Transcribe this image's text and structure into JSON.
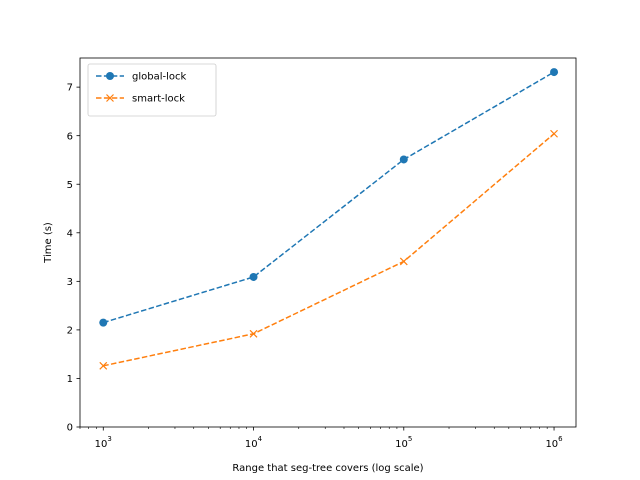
{
  "chart_data": {
    "type": "line",
    "title": "",
    "xlabel": "Range that seg-tree covers (log scale)",
    "ylabel": "Time (s)",
    "xscale": "log",
    "xlim": [
      700,
      1400000
    ],
    "ylim": [
      0,
      7.6
    ],
    "x": [
      1000,
      10000,
      100000,
      1000000
    ],
    "x_tick_labels": [
      {
        "base": "10",
        "exp": "3"
      },
      {
        "base": "10",
        "exp": "4"
      },
      {
        "base": "10",
        "exp": "5"
      },
      {
        "base": "10",
        "exp": "6"
      }
    ],
    "y_ticks": [
      "0",
      "1",
      "2",
      "3",
      "4",
      "5",
      "6",
      "7"
    ],
    "grid": false,
    "legend_position": "top-left",
    "series": [
      {
        "name": "global-lock",
        "values": [
          2.15,
          3.09,
          5.51,
          7.31
        ],
        "color": "#1f77b4",
        "marker": "circle",
        "linestyle": "dashed"
      },
      {
        "name": "smart-lock",
        "values": [
          1.26,
          1.92,
          3.41,
          6.04
        ],
        "color": "#ff7f0e",
        "marker": "x",
        "linestyle": "dashed"
      }
    ]
  }
}
